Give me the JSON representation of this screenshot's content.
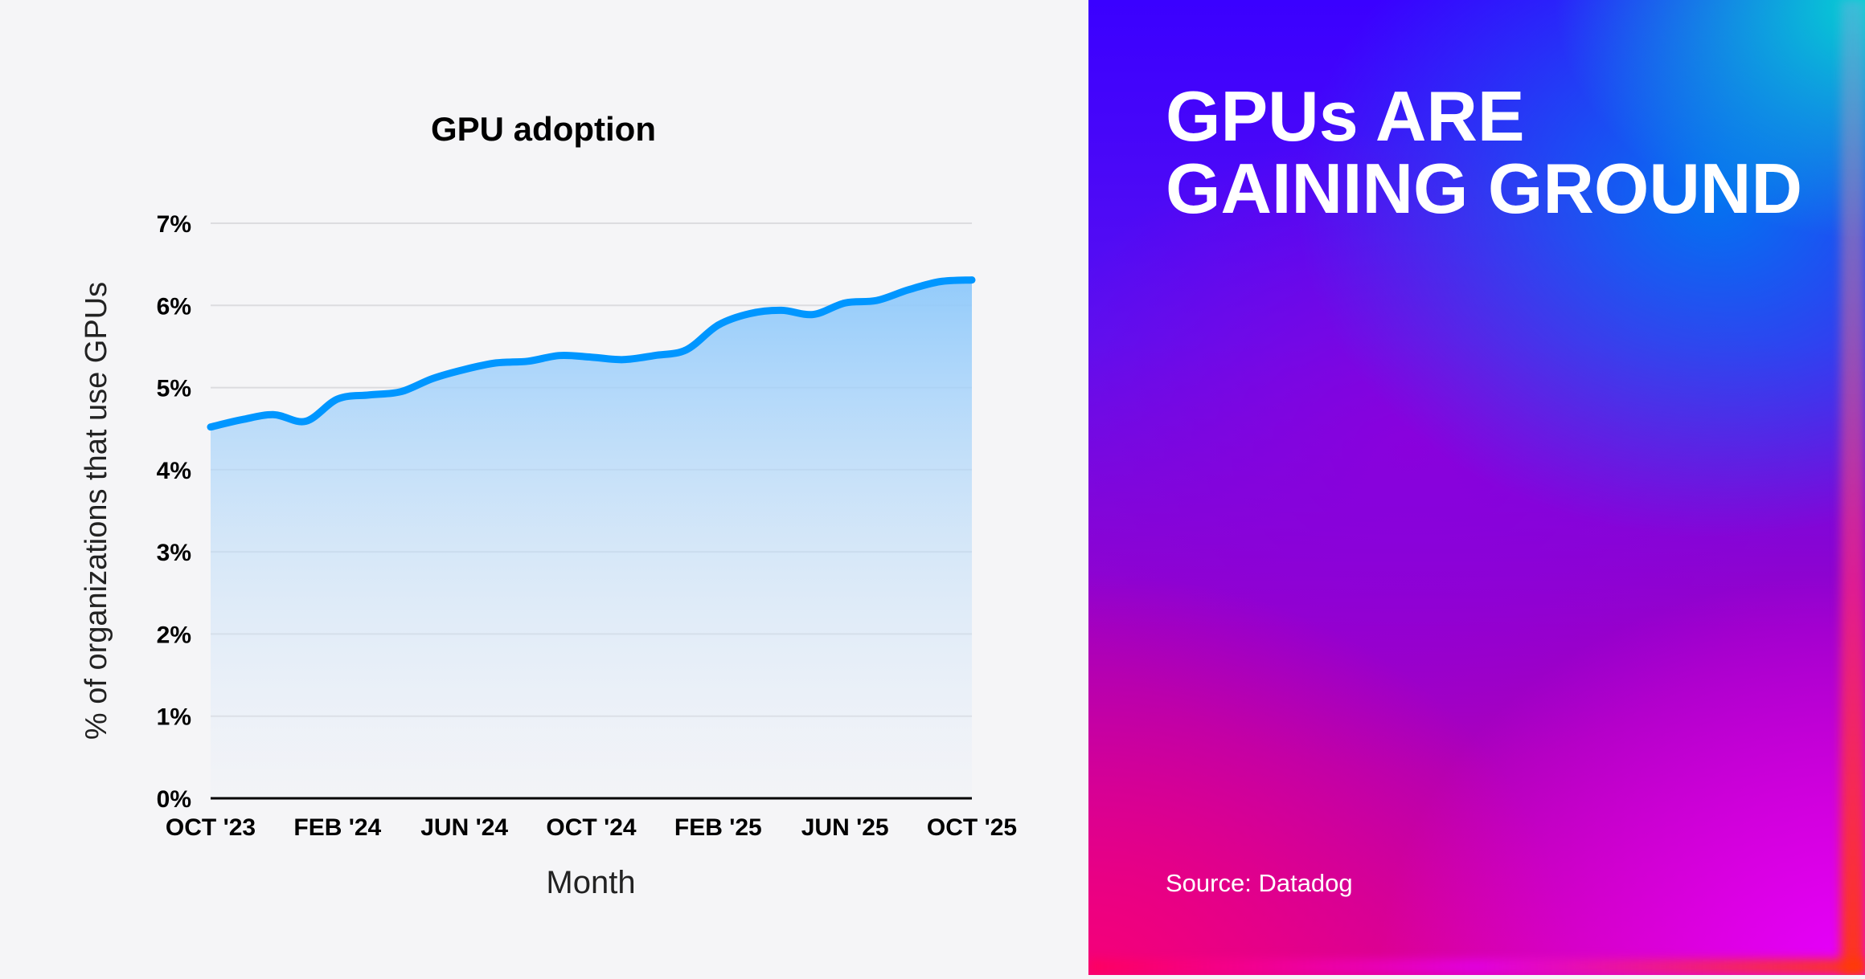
{
  "chart_data": {
    "type": "area",
    "title": "GPU adoption",
    "xlabel": "Month",
    "ylabel": "% of organizations that use GPUs",
    "x": [
      "Oct '23",
      "Nov '23",
      "Dec '23",
      "Jan '24",
      "Feb '24",
      "Mar '24",
      "Apr '24",
      "May '24",
      "Jun '24",
      "Jul '24",
      "Aug '24",
      "Sep '24",
      "Oct '24",
      "Nov '24",
      "Dec '24",
      "Jan '25",
      "Feb '25",
      "Mar '25",
      "Apr '25",
      "May '25",
      "Jun '25",
      "Jul '25",
      "Aug '25",
      "Sep '25",
      "Oct '25"
    ],
    "values": [
      4.52,
      4.61,
      4.67,
      4.59,
      4.86,
      4.91,
      4.95,
      5.11,
      5.22,
      5.3,
      5.32,
      5.39,
      5.37,
      5.34,
      5.39,
      5.46,
      5.76,
      5.9,
      5.94,
      5.89,
      6.03,
      6.06,
      6.19,
      6.29,
      6.31
    ],
    "x_tick_labels": [
      "OCT '23",
      "FEB '24",
      "JUN '24",
      "OCT '24",
      "FEB '25",
      "JUN '25",
      "OCT '25"
    ],
    "y_tick_labels": [
      "0%",
      "1%",
      "2%",
      "3%",
      "4%",
      "5%",
      "6%",
      "7%"
    ],
    "ylim": [
      0,
      7
    ],
    "grid": true,
    "line_color": "#0096ff",
    "fill_color": "#8ec9fb"
  },
  "panel": {
    "headline_line1": "GPUs ARE",
    "headline_line2": "GAINING GROUND",
    "source": "Source: Datadog"
  }
}
